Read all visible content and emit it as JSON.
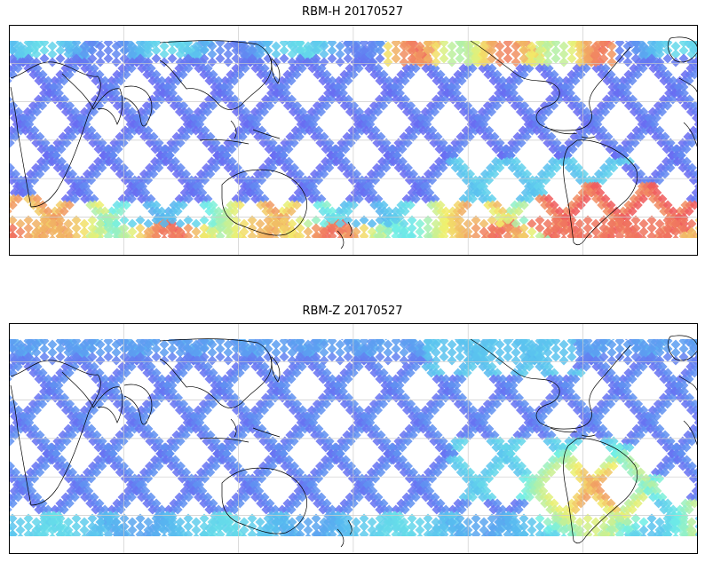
{
  "figure": {
    "panels": [
      {
        "id": "top",
        "title": "RBM-H 20170527",
        "colormap": "jet",
        "hot_spots": [
          "south-atlantic-anomaly",
          "southern-high-latitudes",
          "northern-high-latitudes-atlantic"
        ]
      },
      {
        "id": "bottom",
        "title": "RBM-Z 20170527",
        "colormap": "jet",
        "hot_spots": [
          "south-atlantic-anomaly"
        ]
      }
    ],
    "colors": {
      "frame": "#000000",
      "grid": "#cccccc",
      "coast": "#000000",
      "low": "#6b5cf2",
      "mid_low": "#56b8f0",
      "mid": "#6ff0e6",
      "mid_high": "#f2f06a",
      "high": "#f0565c"
    }
  }
}
